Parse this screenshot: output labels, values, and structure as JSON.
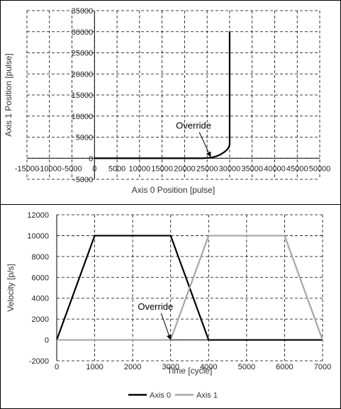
{
  "colors": {
    "axis0": "#000000",
    "axis1": "#a6a6a6",
    "grid": "#000000",
    "background": "#ffffff"
  },
  "chart_data": [
    {
      "type": "line",
      "xlabel": "Axis 0 Position [pulse]",
      "ylabel": "Axis 1 Position [pulse]",
      "xlim": [
        -15000,
        50000
      ],
      "ylim": [
        -5000,
        35000
      ],
      "x_ticks": [
        -15000,
        -10000,
        -5000,
        0,
        5000,
        10000,
        15000,
        20000,
        25000,
        30000,
        35000,
        40000,
        45000,
        50000
      ],
      "y_ticks": [
        -5000,
        0,
        5000,
        10000,
        15000,
        20000,
        25000,
        30000,
        35000
      ],
      "grid": true,
      "series": [
        {
          "x": [
            0,
            5000,
            10000,
            15000,
            20000,
            24000,
            25000,
            26000,
            27000,
            28000,
            29000,
            29500,
            29800,
            29950,
            30000,
            30000
          ],
          "y": [
            0,
            0,
            0,
            0,
            0,
            0,
            50,
            180,
            450,
            900,
            1600,
            2100,
            2600,
            3000,
            3500,
            30000
          ]
        }
      ],
      "annotations": [
        {
          "text": "Override",
          "x": 22000,
          "y": 7000,
          "arrow_to": [
            25800,
            300
          ]
        }
      ]
    },
    {
      "type": "line",
      "xlabel": "Time [cycle]",
      "ylabel": "Velocity [p/s]",
      "xlim": [
        0,
        7000
      ],
      "ylim": [
        -2000,
        12000
      ],
      "x_ticks": [
        0,
        1000,
        2000,
        3000,
        4000,
        5000,
        6000,
        7000
      ],
      "y_ticks": [
        -2000,
        0,
        2000,
        4000,
        6000,
        8000,
        10000,
        12000
      ],
      "grid": true,
      "legend_position": "bottom",
      "series": [
        {
          "name": "Axis 0",
          "x": [
            0,
            1000,
            3000,
            4000,
            7000
          ],
          "y": [
            0,
            10000,
            10000,
            0,
            0
          ]
        },
        {
          "name": "Axis 1",
          "x": [
            0,
            3000,
            4000,
            6000,
            7000
          ],
          "y": [
            0,
            0,
            10000,
            10000,
            0
          ]
        }
      ],
      "annotations": [
        {
          "text": "Override",
          "x": 2600,
          "y": 2900,
          "arrow_to": [
            3000,
            0
          ]
        }
      ]
    }
  ]
}
